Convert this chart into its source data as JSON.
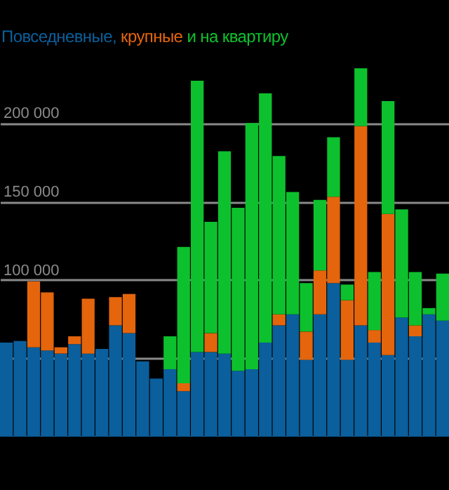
{
  "chart_data": {
    "type": "bar",
    "stacked": true,
    "categories": [
      null,
      null,
      null,
      null,
      null,
      null,
      null,
      null,
      null,
      null,
      null,
      null,
      null,
      null,
      null,
      null,
      null,
      null,
      null,
      null,
      null,
      null,
      null,
      null,
      null,
      null,
      null,
      null,
      null,
      null,
      null,
      null,
      null
    ],
    "series": [
      {
        "name": "Повседневные,",
        "color": "#0a5f9c",
        "values": [
          60000,
          61000,
          57000,
          55000,
          53000,
          59000,
          53000,
          56000,
          71000,
          66000,
          48000,
          37000,
          43000,
          29000,
          54000,
          54000,
          53000,
          42000,
          43000,
          60000,
          71000,
          78000,
          49000,
          78000,
          98000,
          49000,
          71000,
          60000,
          52000,
          76000,
          64000,
          78000,
          74000
        ]
      },
      {
        "name": "крупные",
        "color": "#e4650c",
        "values": [
          0,
          0,
          42000,
          37000,
          4000,
          5000,
          35000,
          0,
          18000,
          25000,
          0,
          0,
          0,
          5000,
          0,
          12000,
          0,
          0,
          0,
          0,
          7000,
          0,
          18000,
          28000,
          55000,
          38000,
          127000,
          8000,
          90000,
          0,
          7000,
          0,
          0
        ]
      },
      {
        "name": "и на квартиру",
        "color": "#0dc12e",
        "values": [
          0,
          0,
          0,
          0,
          0,
          0,
          0,
          0,
          0,
          0,
          0,
          0,
          21000,
          87000,
          173000,
          71000,
          129000,
          104000,
          157000,
          159000,
          101000,
          78000,
          31000,
          45000,
          38000,
          10000,
          37000,
          37000,
          72000,
          69000,
          34000,
          4000,
          30000
        ]
      }
    ],
    "ylim": [
      0,
      240000
    ],
    "yticks": [
      {
        "value": 0,
        "label": null
      },
      {
        "value": 50000,
        "label": null
      },
      {
        "value": 100000,
        "label": "100 000"
      },
      {
        "value": 150000,
        "label": "150 000"
      },
      {
        "value": 200000,
        "label": "200 000"
      }
    ],
    "grid": "y",
    "tick_labels": "y"
  }
}
